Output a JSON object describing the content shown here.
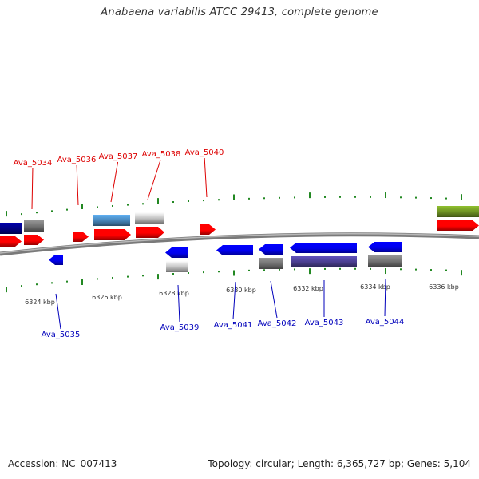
{
  "title": "Anabaena variabilis ATCC 29413, complete genome",
  "footer": {
    "accession_label": "Accession:",
    "accession": "NC_007413",
    "topology_label": "Topology:",
    "topology": "circular",
    "length_label": "Length:",
    "length": "6,365,727 bp",
    "genes_label": "Genes:",
    "genes": "5,104"
  },
  "colors": {
    "backbone": "#888888",
    "forward_gene": "#ff0000",
    "reverse_gene": "#0000ee",
    "forward_label": "#dd0000",
    "reverse_label": "#0000bb",
    "tick": "#228822",
    "navy_feature": "#000080",
    "steelblue_feature": "#4682b4",
    "silver_feature": "#c0c0c0",
    "gray_feature": "#707070",
    "purple_feature": "#483d8b",
    "olive_feature": "#6b8e23"
  },
  "scale": {
    "ticks": [
      "6324 kbp",
      "6326 kbp",
      "6328 kbp",
      "6330 kbp",
      "6332 kbp",
      "6334 kbp",
      "6336 kbp"
    ]
  },
  "gene_labels": {
    "forward": [
      "Ava_5034",
      "Ava_5036",
      "Ava_5037",
      "Ava_5038",
      "Ava_5040"
    ],
    "reverse": [
      "Ava_5035",
      "Ava_5039",
      "Ava_5041",
      "Ava_5042",
      "Ava_5043",
      "Ava_5044"
    ]
  }
}
